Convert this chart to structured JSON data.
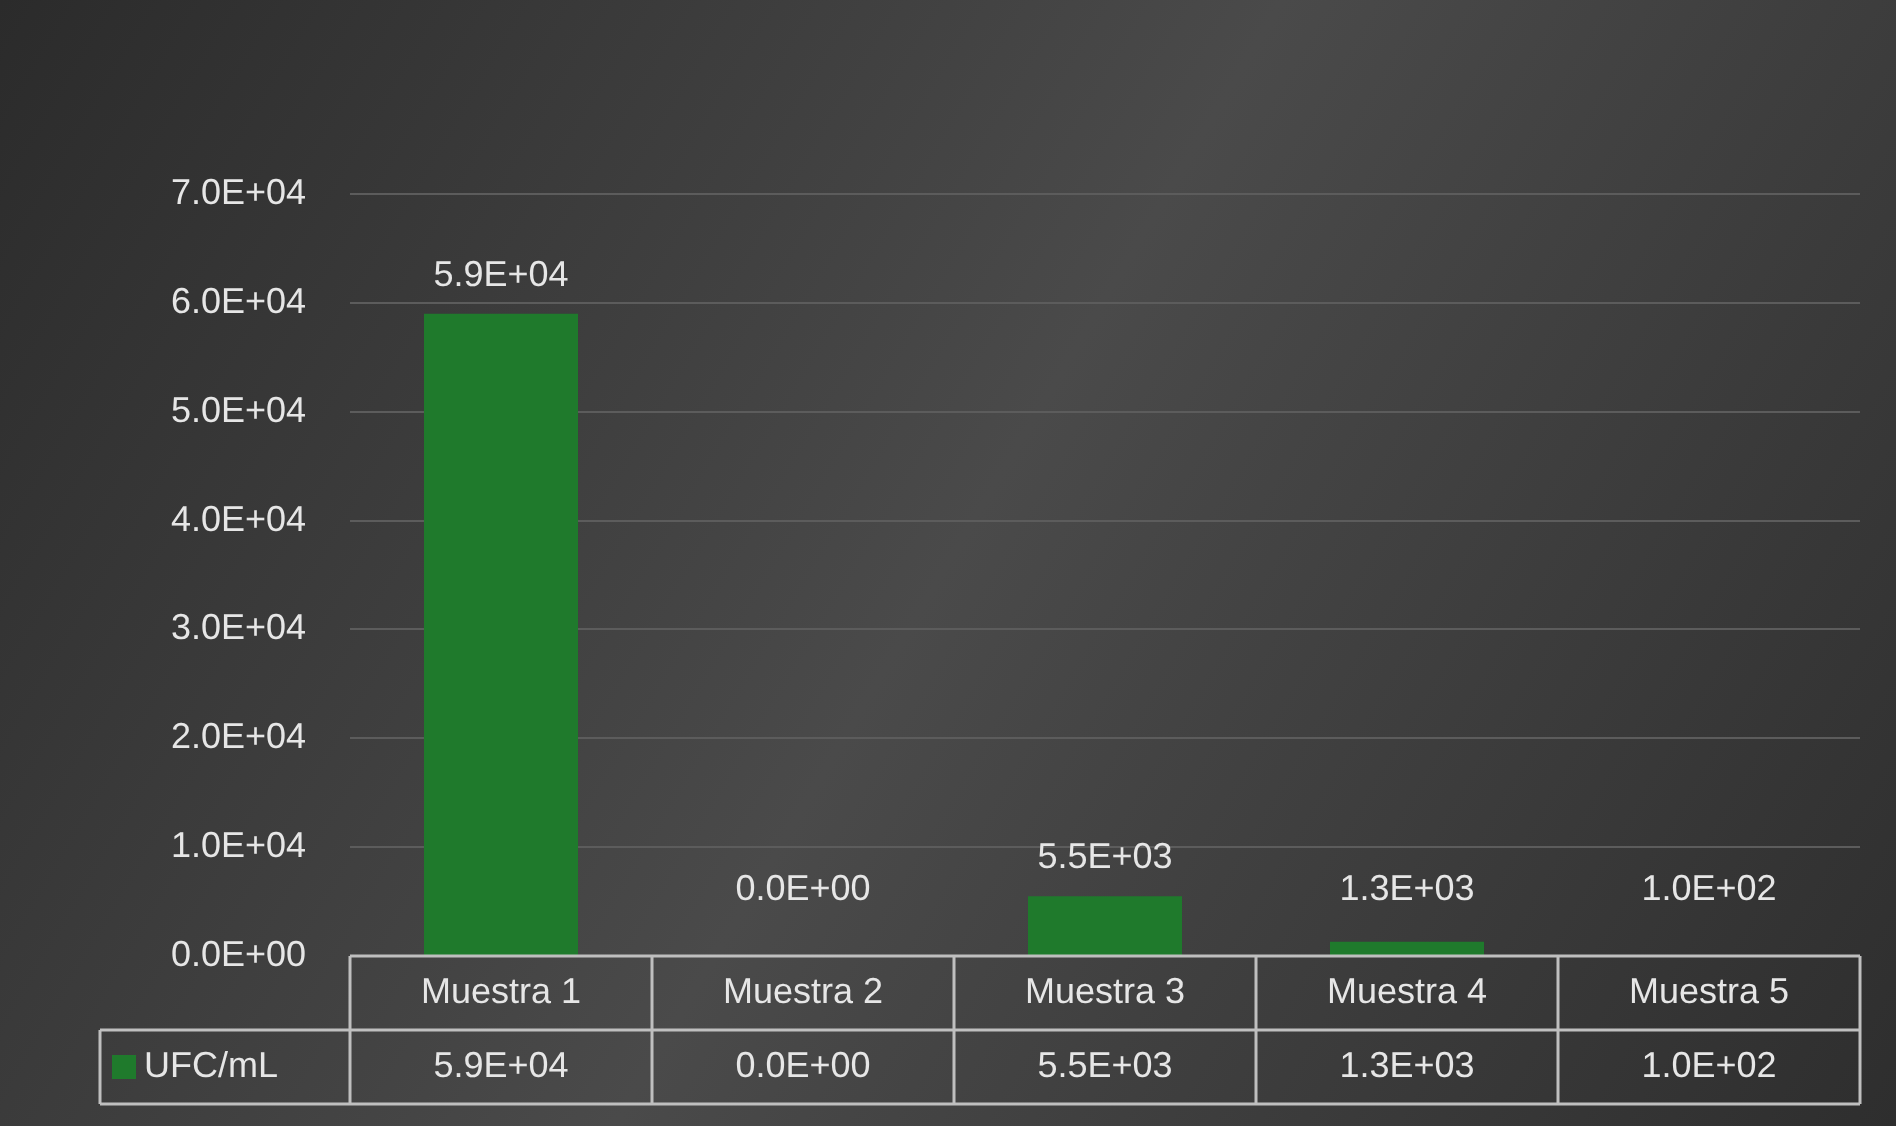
{
  "chart_data": {
    "type": "bar",
    "categories": [
      "Muestra 1",
      "Muestra 2",
      "Muestra 3",
      "Muestra 4",
      "Muestra 5"
    ],
    "series": [
      {
        "name": "UFC/mL",
        "color": "#1f7a2c",
        "values": [
          59000,
          0,
          5500,
          1300,
          100
        ],
        "value_labels": [
          "5.9E+04",
          "0.0E+00",
          "5.5E+03",
          "1.3E+03",
          "1.0E+02"
        ]
      }
    ],
    "ylim": [
      0,
      70000
    ],
    "yticks": [
      {
        "value": 0,
        "label": "0.0E+00"
      },
      {
        "value": 10000,
        "label": "1.0E+04"
      },
      {
        "value": 20000,
        "label": "2.0E+04"
      },
      {
        "value": 30000,
        "label": "3.0E+04"
      },
      {
        "value": 40000,
        "label": "4.0E+04"
      },
      {
        "value": 50000,
        "label": "5.0E+04"
      },
      {
        "value": 60000,
        "label": "6.0E+04"
      },
      {
        "value": 70000,
        "label": "7.0E+04"
      }
    ],
    "grid": "y",
    "legend": "bottom"
  }
}
